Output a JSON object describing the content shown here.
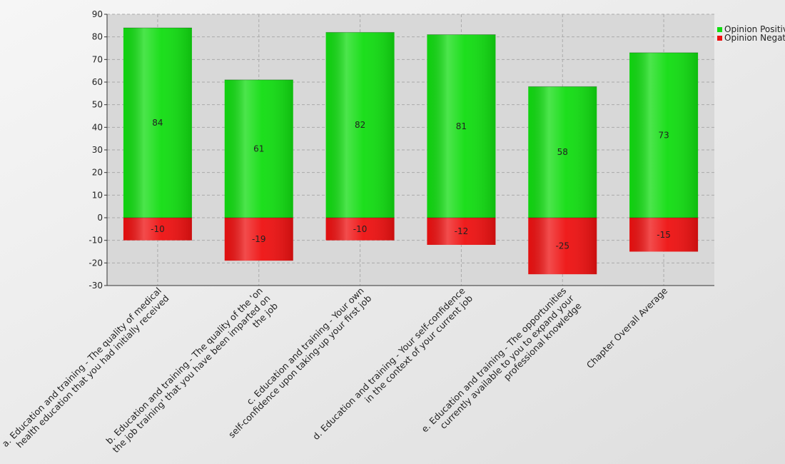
{
  "chart_data": {
    "type": "bar",
    "stacked": true,
    "categories": [
      "a. Education and training - The quality of medical\nhealth education that you had initially received",
      "b. Education and training - The quality of the 'on\nthe job training' that you have been imparted on\nthe job",
      "c. Education and training - Your own\nself-confidence upon taking-up your first job",
      "d. Education and training - Your self-confidence\nin the context of your current job",
      "e. Education and training - The opportunities\ncurrently available to you to expand your\nprofessional knowledge",
      "Chapter Overall Average"
    ],
    "series": [
      {
        "name": "Opinion Positive",
        "color": "#11dd11",
        "values": [
          84,
          61,
          82,
          81,
          58,
          73
        ]
      },
      {
        "name": "Opinion Negative",
        "color": "#ee1111",
        "values": [
          -10,
          -19,
          -10,
          -12,
          -25,
          -15
        ]
      }
    ],
    "ylim": [
      -30,
      90
    ],
    "yticks": [
      -30,
      -20,
      -10,
      0,
      10,
      20,
      30,
      40,
      50,
      60,
      70,
      80,
      90
    ],
    "grid": true,
    "legend": "top-right"
  }
}
